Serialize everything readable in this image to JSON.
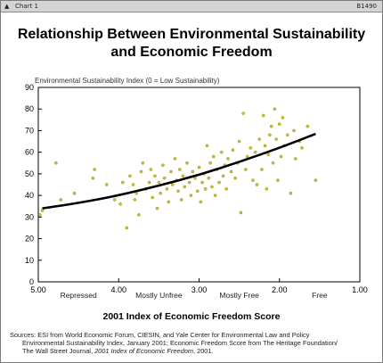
{
  "window": {
    "title": "Chart 1",
    "code": "B1490"
  },
  "title_line1": "Relationship Between Environmental Sustainability",
  "title_line2": "and Economic Freedom",
  "sources": {
    "line1": "Sources: ESI from World Economic Forum, CIESIN, and Yale Center for Environmental Law and Policy",
    "line2": "Environmental Sustainability Index, January 2001; Economic Freedom Score from The Heritage Foundation/",
    "line3_plain": "The Wall Street Journal, ",
    "line3_italic": "2001 Index of Economic Freedom",
    "line3_end": ", 2001."
  },
  "chart_data": {
    "type": "scatter",
    "title": "Relationship Between Environmental Sustainability and Economic Freedom",
    "xlabel": "2001 Index of Economic Freedom Score",
    "ylabel": "Environmental Sustainability Index (0 = Low Sustainability)",
    "xlim": [
      5.0,
      1.0
    ],
    "ylim": [
      0,
      90
    ],
    "x_reversed": true,
    "x_ticks": [
      "5.00",
      "4.00",
      "3.00",
      "2.00",
      "1.00"
    ],
    "y_ticks": [
      "0",
      "10",
      "20",
      "30",
      "40",
      "50",
      "60",
      "70",
      "80",
      "90"
    ],
    "x_category_labels": [
      "Repressed",
      "Mostly Unfree",
      "Mostly Free",
      "Free"
    ],
    "grid": false,
    "point_color": "#c9c233",
    "trend_color": "#000000",
    "points": [
      [
        4.98,
        31
      ],
      [
        4.95,
        33
      ],
      [
        4.78,
        55
      ],
      [
        4.72,
        38
      ],
      [
        4.55,
        41
      ],
      [
        4.32,
        48
      ],
      [
        4.3,
        52
      ],
      [
        4.15,
        45
      ],
      [
        4.05,
        38
      ],
      [
        3.98,
        36
      ],
      [
        3.95,
        46
      ],
      [
        3.9,
        25
      ],
      [
        3.86,
        49
      ],
      [
        3.82,
        45
      ],
      [
        3.8,
        38
      ],
      [
        3.78,
        41
      ],
      [
        3.75,
        31
      ],
      [
        3.72,
        51
      ],
      [
        3.7,
        55
      ],
      [
        3.66,
        43
      ],
      [
        3.62,
        46
      ],
      [
        3.6,
        52
      ],
      [
        3.58,
        39
      ],
      [
        3.55,
        49
      ],
      [
        3.52,
        34
      ],
      [
        3.5,
        46
      ],
      [
        3.48,
        41
      ],
      [
        3.45,
        54
      ],
      [
        3.43,
        48
      ],
      [
        3.4,
        43
      ],
      [
        3.38,
        37
      ],
      [
        3.35,
        51
      ],
      [
        3.33,
        45
      ],
      [
        3.3,
        57
      ],
      [
        3.28,
        47
      ],
      [
        3.26,
        42
      ],
      [
        3.24,
        52
      ],
      [
        3.22,
        38
      ],
      [
        3.2,
        49
      ],
      [
        3.18,
        44
      ],
      [
        3.15,
        55
      ],
      [
        3.12,
        46
      ],
      [
        3.1,
        40
      ],
      [
        3.08,
        51
      ],
      [
        3.05,
        48
      ],
      [
        3.02,
        42
      ],
      [
        3.0,
        53
      ],
      [
        2.98,
        37
      ],
      [
        2.96,
        46
      ],
      [
        2.94,
        50
      ],
      [
        2.92,
        43
      ],
      [
        2.9,
        63
      ],
      [
        2.88,
        48
      ],
      [
        2.86,
        55
      ],
      [
        2.84,
        44
      ],
      [
        2.82,
        58
      ],
      [
        2.8,
        40
      ],
      [
        2.78,
        52
      ],
      [
        2.75,
        46
      ],
      [
        2.72,
        60
      ],
      [
        2.7,
        49
      ],
      [
        2.68,
        54
      ],
      [
        2.66,
        43
      ],
      [
        2.64,
        57
      ],
      [
        2.6,
        51
      ],
      [
        2.58,
        61
      ],
      [
        2.55,
        48
      ],
      [
        2.52,
        55
      ],
      [
        2.5,
        65
      ],
      [
        2.48,
        32
      ],
      [
        2.45,
        78
      ],
      [
        2.42,
        52
      ],
      [
        2.4,
        58
      ],
      [
        2.36,
        62
      ],
      [
        2.33,
        47
      ],
      [
        2.3,
        60
      ],
      [
        2.28,
        45
      ],
      [
        2.25,
        66
      ],
      [
        2.22,
        52
      ],
      [
        2.2,
        77
      ],
      [
        2.18,
        63
      ],
      [
        2.16,
        43
      ],
      [
        2.14,
        59
      ],
      [
        2.12,
        68
      ],
      [
        2.1,
        72
      ],
      [
        2.08,
        55
      ],
      [
        2.06,
        80
      ],
      [
        2.04,
        66
      ],
      [
        2.02,
        47
      ],
      [
        2.0,
        73
      ],
      [
        1.98,
        58
      ],
      [
        1.96,
        76
      ],
      [
        1.94,
        63
      ],
      [
        1.9,
        68
      ],
      [
        1.86,
        41
      ],
      [
        1.82,
        70
      ],
      [
        1.8,
        57
      ],
      [
        1.75,
        65
      ],
      [
        1.72,
        62
      ],
      [
        1.65,
        72
      ],
      [
        1.55,
        47
      ]
    ],
    "trend": [
      [
        4.95,
        34
      ],
      [
        4.5,
        36.5
      ],
      [
        4.0,
        40
      ],
      [
        3.5,
        44.5
      ],
      [
        3.0,
        49.5
      ],
      [
        2.5,
        55.5
      ],
      [
        2.0,
        62
      ],
      [
        1.55,
        68.5
      ]
    ]
  }
}
